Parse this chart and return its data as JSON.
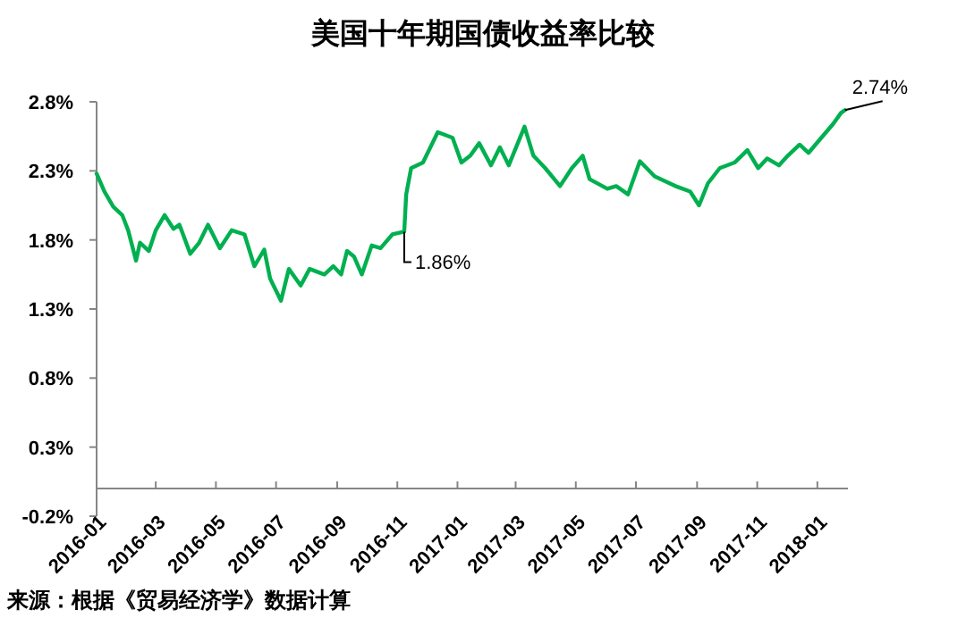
{
  "chart_data": {
    "type": "line",
    "title": "美国十年期国债收益率比较",
    "annotations": [
      {
        "text": "1.86%",
        "x": "2016-11-08",
        "y": 1.86
      },
      {
        "text": "2.74%",
        "x": "2018-01-29",
        "y": 2.74
      },
      "来源：根据《贸易经济学》数据计算"
    ],
    "xlim": [
      "2016-01-01",
      "2018-02-01"
    ],
    "xticks": [
      "2016-01",
      "2016-03",
      "2016-05",
      "2016-07",
      "2016-09",
      "2016-11",
      "2017-01",
      "2017-03",
      "2017-05",
      "2017-07",
      "2017-09",
      "2017-11",
      "2018-01"
    ],
    "ylim": [
      -0.2,
      2.8
    ],
    "yticks": [
      {
        "value": -0.2,
        "label": "-0.2%"
      },
      {
        "value": 0.3,
        "label": "0.3%"
      },
      {
        "value": 0.8,
        "label": "0.8%"
      },
      {
        "value": 1.3,
        "label": "1.3%"
      },
      {
        "value": 1.8,
        "label": "1.8%"
      },
      {
        "value": 2.3,
        "label": "2.3%"
      },
      {
        "value": 2.8,
        "label": "2.8%"
      }
    ],
    "grid": false,
    "marker": "none",
    "line_style": "solid",
    "x": [
      "2016-01-01",
      "2016-01-09",
      "2016-01-18",
      "2016-01-27",
      "2016-02-02",
      "2016-02-10",
      "2016-02-14",
      "2016-02-23",
      "2016-03-01",
      "2016-03-10",
      "2016-03-19",
      "2016-03-25",
      "2016-04-05",
      "2016-04-14",
      "2016-04-23",
      "2016-05-05",
      "2016-05-17",
      "2016-05-30",
      "2016-06-09",
      "2016-06-19",
      "2016-06-25",
      "2016-07-06",
      "2016-07-14",
      "2016-07-26",
      "2016-08-04",
      "2016-08-19",
      "2016-08-28",
      "2016-09-05",
      "2016-09-11",
      "2016-09-18",
      "2016-09-26",
      "2016-10-06",
      "2016-10-15",
      "2016-10-27",
      "2016-11-08",
      "2016-11-10",
      "2016-11-15",
      "2016-11-27",
      "2016-12-12",
      "2016-12-27",
      "2017-01-05",
      "2017-01-14",
      "2017-01-23",
      "2017-02-04",
      "2017-02-13",
      "2017-02-22",
      "2017-03-10",
      "2017-03-19",
      "2017-03-31",
      "2017-04-15",
      "2017-04-27",
      "2017-05-08",
      "2017-05-15",
      "2017-06-02",
      "2017-06-11",
      "2017-06-23",
      "2017-07-05",
      "2017-07-20",
      "2017-08-10",
      "2017-08-25",
      "2017-09-03",
      "2017-09-12",
      "2017-09-24",
      "2017-10-09",
      "2017-10-22",
      "2017-11-02",
      "2017-11-11",
      "2017-11-23",
      "2017-12-02",
      "2017-12-14",
      "2017-12-23",
      "2018-01-05",
      "2018-01-17",
      "2018-01-25",
      "2018-01-29"
    ],
    "series": [
      {
        "color": "#00b050",
        "values": [
          2.28,
          2.15,
          2.04,
          1.98,
          1.87,
          1.65,
          1.78,
          1.72,
          1.87,
          1.98,
          1.88,
          1.91,
          1.7,
          1.78,
          1.91,
          1.74,
          1.87,
          1.84,
          1.61,
          1.73,
          1.52,
          1.36,
          1.59,
          1.47,
          1.59,
          1.55,
          1.61,
          1.55,
          1.72,
          1.68,
          1.55,
          1.76,
          1.74,
          1.84,
          1.86,
          2.13,
          2.32,
          2.36,
          2.58,
          2.54,
          2.36,
          2.41,
          2.5,
          2.34,
          2.47,
          2.34,
          2.62,
          2.41,
          2.32,
          2.19,
          2.32,
          2.41,
          2.24,
          2.17,
          2.19,
          2.13,
          2.37,
          2.26,
          2.19,
          2.15,
          2.05,
          2.21,
          2.32,
          2.36,
          2.45,
          2.32,
          2.39,
          2.34,
          2.41,
          2.49,
          2.43,
          2.54,
          2.64,
          2.72,
          2.74
        ]
      }
    ]
  }
}
